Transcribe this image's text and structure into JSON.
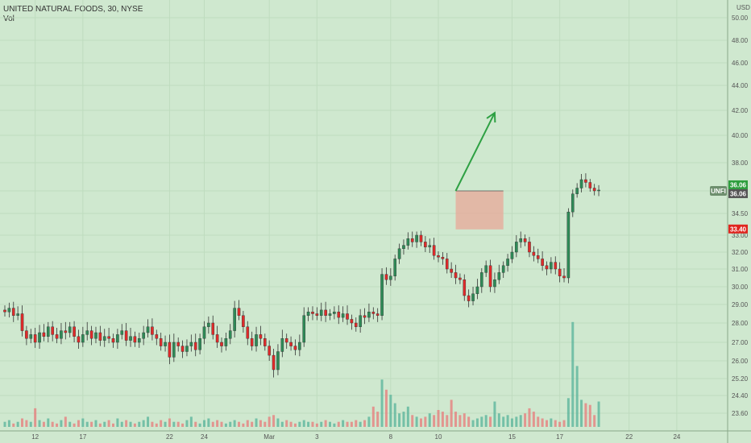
{
  "header": {
    "symbol_line": "UNITED NATURAL FOODS, 30, NYSE",
    "indicator": "Vol"
  },
  "chart_data": {
    "type": "candlestick",
    "currency": "USD",
    "ylim": [
      23,
      51
    ],
    "y_ticks": [
      {
        "label": "50.00",
        "value": 50.0
      },
      {
        "label": "48.00",
        "value": 48.0
      },
      {
        "label": "46.00",
        "value": 46.0
      },
      {
        "label": "44.00",
        "value": 44.0
      },
      {
        "label": "42.00",
        "value": 42.0
      },
      {
        "label": "40.00",
        "value": 40.0
      },
      {
        "label": "38.00",
        "value": 38.0
      },
      {
        "label": "36.00",
        "value": 36.0
      },
      {
        "label": "34.50",
        "value": 34.5
      },
      {
        "label": "33.00",
        "value": 33.0
      },
      {
        "label": "32.00",
        "value": 32.0
      },
      {
        "label": "31.00",
        "value": 31.0
      },
      {
        "label": "30.00",
        "value": 30.0
      },
      {
        "label": "29.00",
        "value": 29.0
      },
      {
        "label": "28.00",
        "value": 28.0
      },
      {
        "label": "27.00",
        "value": 27.0
      },
      {
        "label": "26.00",
        "value": 26.0
      },
      {
        "label": "25.20",
        "value": 25.2
      },
      {
        "label": "24.40",
        "value": 24.4
      },
      {
        "label": "23.60",
        "value": 23.6
      }
    ],
    "x_ticks": [
      {
        "label": "12",
        "index": 7
      },
      {
        "label": "17",
        "index": 18
      },
      {
        "label": "22",
        "index": 38
      },
      {
        "label": "24",
        "index": 46
      },
      {
        "label": "Mar",
        "index": 61
      },
      {
        "label": "3",
        "index": 72
      },
      {
        "label": "8",
        "index": 89
      },
      {
        "label": "10",
        "index": 100
      },
      {
        "label": "15",
        "index": 117
      },
      {
        "label": "17",
        "index": 128
      },
      {
        "label": "22",
        "index": 144
      },
      {
        "label": "24",
        "index": 155
      }
    ],
    "price_labels": [
      {
        "label": "36.06",
        "value": 36.06,
        "color": "#2e9e3e"
      },
      {
        "label": "36.06",
        "value": 36.06,
        "color": "#555555"
      },
      {
        "label": "UNFI",
        "value": 36.0,
        "color": "#6e8f6e"
      },
      {
        "label": "33.40",
        "value": 33.4,
        "color": "#e0261f"
      }
    ],
    "annotation_box": {
      "start_index": 104,
      "end_index": 115,
      "top": 36.0,
      "bottom": 33.4,
      "color": "#e8a898"
    },
    "annotation_arrow": {
      "from_index": 104,
      "from_value": 36.0,
      "to_index": 113,
      "to_value": 41.8,
      "color": "#2ea043"
    },
    "up_color": "#2e8b57",
    "down_color": "#e02a2a",
    "closes": [
      28.6,
      28.8,
      28.4,
      28.5,
      27.6,
      27.2,
      27.4,
      27.0,
      27.5,
      27.3,
      27.8,
      27.4,
      27.2,
      27.6,
      27.5,
      27.8,
      27.3,
      27.0,
      27.4,
      27.6,
      27.2,
      27.5,
      27.1,
      27.3,
      27.2,
      27.0,
      27.4,
      27.6,
      27.1,
      27.3,
      27.0,
      27.2,
      27.5,
      27.8,
      27.4,
      27.2,
      26.8,
      27.0,
      26.2,
      27.0,
      26.8,
      26.5,
      26.8,
      27.0,
      26.6,
      27.2,
      27.8,
      28.0,
      27.4,
      27.0,
      26.8,
      27.2,
      27.6,
      28.8,
      28.4,
      27.8,
      27.2,
      26.8,
      27.4,
      27.2,
      26.8,
      26.3,
      25.6,
      26.5,
      27.2,
      27.0,
      26.8,
      26.6,
      27.0,
      28.4,
      28.6,
      28.5,
      28.4,
      28.7,
      28.4,
      28.5,
      28.6,
      28.3,
      28.5,
      28.2,
      28.0,
      27.8,
      28.4,
      28.3,
      28.6,
      28.5,
      28.4,
      30.7,
      30.4,
      30.6,
      31.6,
      32.2,
      32.4,
      32.8,
      32.6,
      33.0,
      32.6,
      32.3,
      32.4,
      31.8,
      31.7,
      31.6,
      31.0,
      30.8,
      30.5,
      30.4,
      29.5,
      29.2,
      29.6,
      30.0,
      30.8,
      31.2,
      30.0,
      30.4,
      30.8,
      31.2,
      31.6,
      32.0,
      32.6,
      32.8,
      32.6,
      32.0,
      31.8,
      31.6,
      31.2,
      31.0,
      31.4,
      31.0,
      30.6,
      30.5,
      34.6,
      35.8,
      36.2,
      36.8,
      36.6,
      36.2,
      36.0,
      36.06
    ],
    "volumes": [
      0.3,
      0.4,
      0.2,
      0.3,
      0.5,
      0.4,
      0.3,
      1.1,
      0.4,
      0.3,
      0.5,
      0.3,
      0.2,
      0.4,
      0.6,
      0.3,
      0.2,
      0.4,
      0.5,
      0.3,
      0.3,
      0.4,
      0.2,
      0.3,
      0.4,
      0.2,
      0.5,
      0.3,
      0.4,
      0.3,
      0.2,
      0.3,
      0.4,
      0.6,
      0.3,
      0.2,
      0.4,
      0.3,
      0.5,
      0.3,
      0.3,
      0.2,
      0.4,
      0.6,
      0.3,
      0.2,
      0.4,
      0.5,
      0.3,
      0.4,
      0.3,
      0.2,
      0.3,
      0.4,
      0.3,
      0.2,
      0.4,
      0.3,
      0.5,
      0.4,
      0.3,
      0.6,
      0.7,
      0.5,
      0.3,
      0.4,
      0.3,
      0.2,
      0.3,
      0.4,
      0.3,
      0.3,
      0.2,
      0.3,
      0.4,
      0.3,
      0.2,
      0.3,
      0.4,
      0.3,
      0.3,
      0.4,
      0.3,
      0.4,
      0.6,
      1.2,
      0.9,
      2.8,
      2.2,
      1.9,
      1.4,
      0.8,
      0.9,
      1.2,
      0.7,
      0.6,
      0.5,
      0.6,
      0.8,
      0.7,
      1.0,
      0.9,
      0.7,
      1.6,
      0.9,
      0.7,
      0.8,
      0.6,
      0.4,
      0.5,
      0.6,
      0.7,
      0.6,
      1.5,
      0.8,
      0.6,
      0.7,
      0.5,
      0.6,
      0.7,
      0.8,
      1.1,
      0.9,
      0.6,
      0.5,
      0.4,
      0.5,
      0.4,
      0.3,
      0.4,
      1.7,
      6.2,
      3.6,
      1.6,
      1.4,
      1.3,
      0.7,
      1.5
    ]
  }
}
